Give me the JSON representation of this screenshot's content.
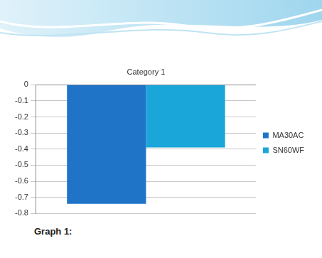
{
  "chart_data": {
    "type": "bar",
    "categories": [
      "Category 1"
    ],
    "series": [
      {
        "name": "MA30AC",
        "color": "#1f74c8",
        "values": [
          -0.74
        ]
      },
      {
        "name": "SN60WF",
        "color": "#1ba6d9",
        "values": [
          -0.39
        ]
      }
    ],
    "ylim": [
      -0.8,
      0
    ],
    "yticks": [
      -0.8,
      -0.7,
      -0.6,
      -0.5,
      -0.4,
      -0.3,
      -0.2,
      -0.1,
      0
    ],
    "grid": true,
    "legend": "right"
  },
  "caption": "Graph 1:"
}
